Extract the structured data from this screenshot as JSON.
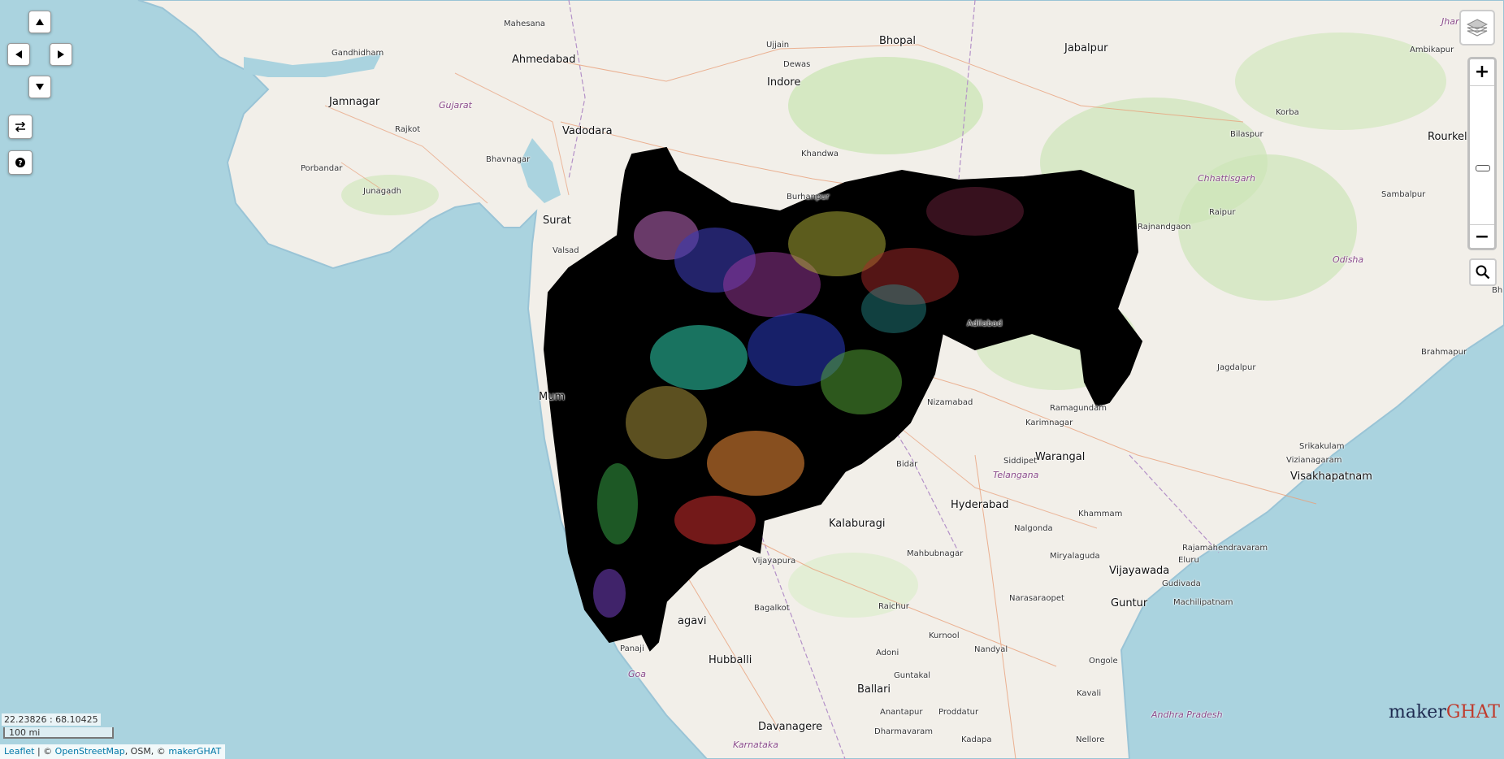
{
  "map": {
    "cities": [
      {
        "name": "Mahesana",
        "cls": "small"
      },
      {
        "name": "Ahmedabad",
        "cls": "major"
      },
      {
        "name": "Gandhidham",
        "cls": "small"
      },
      {
        "name": "Jamnagar",
        "cls": "major"
      },
      {
        "name": "Rajkot",
        "cls": "small"
      },
      {
        "name": "Bhavnagar",
        "cls": "small"
      },
      {
        "name": "Porbandar",
        "cls": "small"
      },
      {
        "name": "Junagadh",
        "cls": "small"
      },
      {
        "name": "Vadodara",
        "cls": "major"
      },
      {
        "name": "Surat",
        "cls": "major"
      },
      {
        "name": "Valsad",
        "cls": "small"
      },
      {
        "name": "Mum",
        "cls": "major"
      },
      {
        "name": "Ujjain",
        "cls": "small"
      },
      {
        "name": "Dewas",
        "cls": "small"
      },
      {
        "name": "Indore",
        "cls": "major"
      },
      {
        "name": "Bhopal",
        "cls": "major"
      },
      {
        "name": "Jabalpur",
        "cls": "major"
      },
      {
        "name": "Khandwa",
        "cls": "small"
      },
      {
        "name": "Burhanpur",
        "cls": "small"
      },
      {
        "name": "Ambikapur",
        "cls": "small"
      },
      {
        "name": "Korba",
        "cls": "small"
      },
      {
        "name": "Bilaspur",
        "cls": "small"
      },
      {
        "name": "Rourkela",
        "cls": "major"
      },
      {
        "name": "Raipur",
        "cls": "small"
      },
      {
        "name": "Rajnandgaon",
        "cls": "small"
      },
      {
        "name": "Sambalpur",
        "cls": "small"
      },
      {
        "name": "Jagdalpur",
        "cls": "small"
      },
      {
        "name": "Brahmapur",
        "cls": "small"
      },
      {
        "name": "Bh",
        "cls": "small"
      },
      {
        "name": "Adilabad",
        "cls": "small"
      },
      {
        "name": "Nizamabad",
        "cls": "small"
      },
      {
        "name": "Ramagundam",
        "cls": "small"
      },
      {
        "name": "Karimnagar",
        "cls": "small"
      },
      {
        "name": "Warangal",
        "cls": "major"
      },
      {
        "name": "Siddipet",
        "cls": "small"
      },
      {
        "name": "Bidar",
        "cls": "small"
      },
      {
        "name": "Hyderabad",
        "cls": "major"
      },
      {
        "name": "Kalaburagi",
        "cls": "major"
      },
      {
        "name": "Nalgonda",
        "cls": "small"
      },
      {
        "name": "Khammam",
        "cls": "small"
      },
      {
        "name": "Mahbubnagar",
        "cls": "small"
      },
      {
        "name": "Miryalaguda",
        "cls": "small"
      },
      {
        "name": "Vijayapura",
        "cls": "small"
      },
      {
        "name": "Srikakulam",
        "cls": "small"
      },
      {
        "name": "Vizianagaram",
        "cls": "small"
      },
      {
        "name": "Visakhapatnam",
        "cls": "major"
      },
      {
        "name": "Rajamahendravaram",
        "cls": "small"
      },
      {
        "name": "Eluru",
        "cls": "small"
      },
      {
        "name": "Vijayawada",
        "cls": "major"
      },
      {
        "name": "Gudivada",
        "cls": "small"
      },
      {
        "name": "Machilipatnam",
        "cls": "small"
      },
      {
        "name": "Narasaraopet",
        "cls": "small"
      },
      {
        "name": "Guntur",
        "cls": "major"
      },
      {
        "name": "Bagalkot",
        "cls": "small"
      },
      {
        "name": "Raichur",
        "cls": "small"
      },
      {
        "name": "agavi",
        "cls": "major"
      },
      {
        "name": "Panaji",
        "cls": "small"
      },
      {
        "name": "Hubballi",
        "cls": "major"
      },
      {
        "name": "Kurnool",
        "cls": "small"
      },
      {
        "name": "Nandyal",
        "cls": "small"
      },
      {
        "name": "Adoni",
        "cls": "small"
      },
      {
        "name": "Ongole",
        "cls": "small"
      },
      {
        "name": "Guntakal",
        "cls": "small"
      },
      {
        "name": "Ballari",
        "cls": "major"
      },
      {
        "name": "Kavali",
        "cls": "small"
      },
      {
        "name": "Anantapur",
        "cls": "small"
      },
      {
        "name": "Proddatur",
        "cls": "small"
      },
      {
        "name": "Dharmavaram",
        "cls": "small"
      },
      {
        "name": "Davanagere",
        "cls": "major"
      },
      {
        "name": "Kadapa",
        "cls": "small"
      },
      {
        "name": "Nellore",
        "cls": "small"
      },
      {
        "name": "Rajkot",
        "cls": "small"
      }
    ],
    "states": [
      "Gujarat",
      "Chhattisgarh",
      "Odisha",
      "Telangana",
      "Andhra Pradesh",
      "Karnataka",
      "Goa",
      "Jhark"
    ]
  },
  "controls": {
    "pan_up_icon": "triangle-up",
    "pan_left_icon": "triangle-left",
    "pan_right_icon": "triangle-right",
    "pan_down_icon": "triangle-down",
    "swap_icon": "swap-arrows",
    "help_icon": "question-circle",
    "zoom_in": "+",
    "zoom_out": "−",
    "zoom_level": 0.4,
    "layers_icon": "layers",
    "search_icon": "magnifier"
  },
  "status": {
    "coordinates": "22.23826 : 68.10425",
    "scale": "100 mi"
  },
  "attribution": {
    "leaflet": "Leaflet",
    "sep": " | © ",
    "osm": "OpenStreetMap",
    "rest": ", OSM, © ",
    "maker": "makerGHAT"
  },
  "brand": {
    "maker": "maker",
    "ghat": "GHAT"
  },
  "colors": {
    "water": "#aad3df",
    "land": "#f2efe9",
    "forest": "#cde6b8",
    "overlay": "#000000",
    "brand_primary": "#1e2a50",
    "brand_accent": "#c0392b"
  }
}
